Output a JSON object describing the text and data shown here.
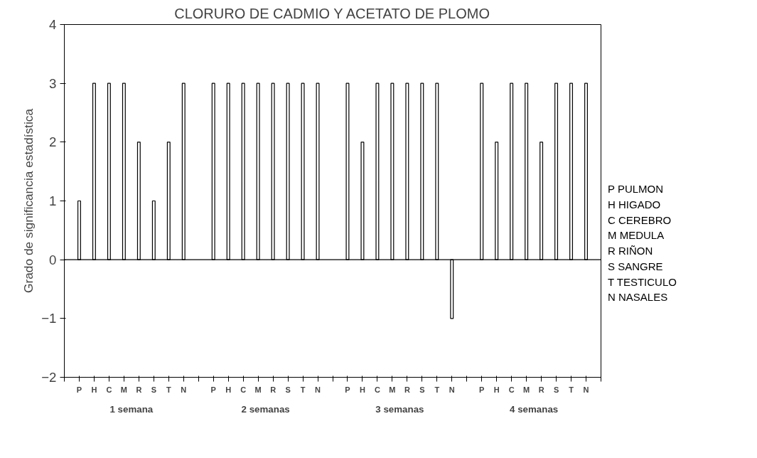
{
  "chart_data": {
    "type": "bar",
    "title": "CLORURO DE CADMIO Y ACETATO DE PLOMO",
    "ylabel": "Grado de significancia estadística",
    "categories": [
      "P",
      "H",
      "C",
      "M",
      "R",
      "S",
      "T",
      "N",
      null,
      "P",
      "H",
      "C",
      "M",
      "R",
      "S",
      "T",
      "N",
      null,
      "P",
      "H",
      "C",
      "M",
      "R",
      "S",
      "T",
      "N",
      null,
      "P",
      "H",
      "C",
      "M",
      "R",
      "S",
      "T",
      "N"
    ],
    "values": [
      1,
      3,
      3,
      3,
      2,
      1,
      2,
      3,
      null,
      3,
      3,
      3,
      3,
      3,
      3,
      3,
      3,
      null,
      3,
      2,
      3,
      3,
      3,
      3,
      3,
      -1,
      null,
      3,
      2,
      3,
      3,
      2,
      3,
      3,
      3
    ],
    "color": "#000000",
    "ylim": [
      -2,
      4
    ],
    "yticks": [
      -2,
      -1,
      0,
      1,
      2,
      3,
      4
    ],
    "grid": false,
    "ref_lines": [
      {
        "axis": "y",
        "value": 0,
        "color": "#000000"
      }
    ],
    "annotations": [
      "1 semana",
      "2 semanas",
      "3 semanas",
      "4 semanas",
      "P PULMON",
      "H HIGADO",
      "C CEREBRO",
      "M MEDULA",
      "R RIÑON",
      "S SANGRE",
      "T TESTICULO",
      "N NASALES"
    ]
  }
}
